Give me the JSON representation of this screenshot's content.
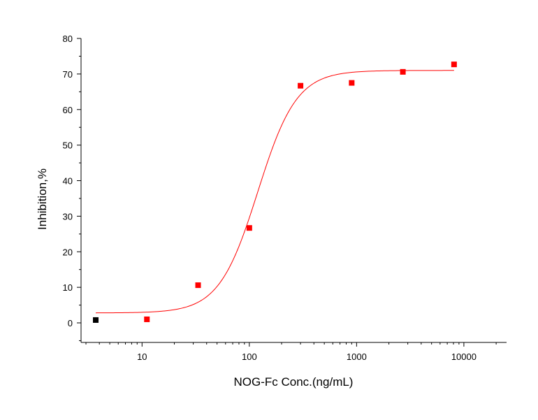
{
  "chart_data": {
    "type": "scatter",
    "title": "",
    "xlabel": "NOG-Fc Conc.(ng/mL)",
    "ylabel": "Inhibition,%",
    "x_scale": "log",
    "xlim": [
      2.7,
      25000
    ],
    "ylim": [
      -5.5,
      80
    ],
    "x_ticks": [
      {
        "value": 10,
        "label": "10"
      },
      {
        "value": 100,
        "label": "100"
      },
      {
        "value": 1000,
        "label": "1000"
      },
      {
        "value": 10000,
        "label": "10000"
      }
    ],
    "y_ticks": [
      {
        "value": 0,
        "label": "0"
      },
      {
        "value": 10,
        "label": "10"
      },
      {
        "value": 20,
        "label": "20"
      },
      {
        "value": 30,
        "label": "30"
      },
      {
        "value": 40,
        "label": "40"
      },
      {
        "value": 50,
        "label": "50"
      },
      {
        "value": 60,
        "label": "60"
      },
      {
        "value": 70,
        "label": "70"
      },
      {
        "value": 80,
        "label": "80"
      }
    ],
    "grid": false,
    "legend": "none",
    "series": [
      {
        "color": "#000000",
        "marker": "square",
        "points": [
          {
            "x": 3.7,
            "y": 0.8
          }
        ]
      },
      {
        "color": "#ff0000",
        "marker": "square",
        "points": [
          {
            "x": 11.1,
            "y": 1.0
          },
          {
            "x": 33.3,
            "y": 10.6
          },
          {
            "x": 100,
            "y": 26.7
          },
          {
            "x": 300,
            "y": 66.7
          },
          {
            "x": 900,
            "y": 67.5
          },
          {
            "x": 2700,
            "y": 70.6
          },
          {
            "x": 8100,
            "y": 72.7
          }
        ]
      }
    ],
    "fit_curve": {
      "color": "#ff0000",
      "model": "4PL",
      "bottom": 2.8,
      "top": 71.0,
      "ec50": 120,
      "hill": 2.4,
      "x_range": [
        3.7,
        8100
      ]
    }
  }
}
